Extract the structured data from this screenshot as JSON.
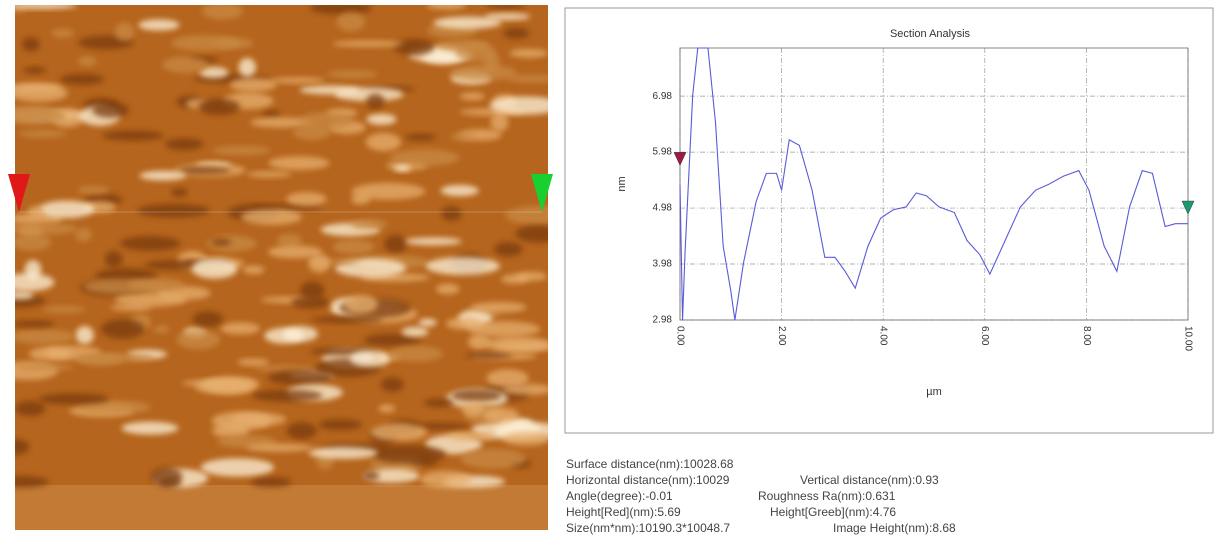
{
  "chart_data": {
    "type": "line",
    "title": "Section Analysis",
    "y_label": "nm",
    "x_label": "µm",
    "xlim": [
      0,
      10
    ],
    "xticks": [
      {
        "value": 0,
        "label": "0.00"
      },
      {
        "value": 2,
        "label": "2.00"
      },
      {
        "value": 4,
        "label": "4.00"
      },
      {
        "value": 6,
        "label": "6.00"
      },
      {
        "value": 8,
        "label": "8.00"
      },
      {
        "value": 10,
        "label": "10.00"
      }
    ],
    "ylim": [
      2.98,
      7.84
    ],
    "yticks": [
      2.98,
      3.98,
      4.98,
      5.98,
      6.98
    ],
    "grid": true,
    "series": [
      {
        "color": "#5a5ad8",
        "x": [
          0,
          0.05,
          0.1,
          0.25,
          0.35,
          0.55,
          0.7,
          0.85,
          1.0,
          1.08,
          1.25,
          1.5,
          1.7,
          1.9,
          2.0,
          2.15,
          2.35,
          2.6,
          2.85,
          3.05,
          3.25,
          3.45,
          3.7,
          3.95,
          4.2,
          4.45,
          4.65,
          4.85,
          5.1,
          5.4,
          5.65,
          5.9,
          6.1,
          6.35,
          6.7,
          7.0,
          7.25,
          7.55,
          7.85,
          8.05,
          8.35,
          8.6,
          8.85,
          9.1,
          9.3,
          9.55,
          9.75,
          10
        ],
        "values": [
          5.4,
          2.98,
          4.2,
          7.0,
          7.84,
          7.84,
          6.5,
          4.3,
          3.5,
          2.98,
          4.0,
          5.1,
          5.6,
          5.6,
          5.3,
          6.2,
          6.1,
          5.3,
          4.1,
          4.1,
          3.85,
          3.55,
          4.3,
          4.8,
          4.95,
          5.0,
          5.25,
          5.2,
          5.0,
          4.9,
          4.4,
          4.15,
          3.8,
          4.3,
          5.0,
          5.3,
          5.4,
          5.55,
          5.65,
          5.3,
          4.3,
          3.85,
          5.0,
          5.65,
          5.6,
          4.65,
          4.7,
          4.7
        ]
      }
    ],
    "cursors": [
      {
        "x": 0,
        "y": 5.85,
        "color": "#a0184a"
      },
      {
        "x": 10,
        "y": 4.98,
        "color": "#1a9a70"
      }
    ]
  },
  "readouts": [
    [
      "Surface distance(nm):10028.68"
    ],
    [
      "Horizontal distance(nm):10029",
      "Vertical distance(nm):0.93"
    ],
    [
      "Angle(degree):-0.01",
      "Roughness Ra(nm):0.631"
    ],
    [
      "Height[Red](nm):5.69",
      "Height[Greeb](nm):4.76"
    ],
    [
      "Size(nm*nm):10190.3*10048.7",
      "Image Height(nm):8.68"
    ]
  ]
}
